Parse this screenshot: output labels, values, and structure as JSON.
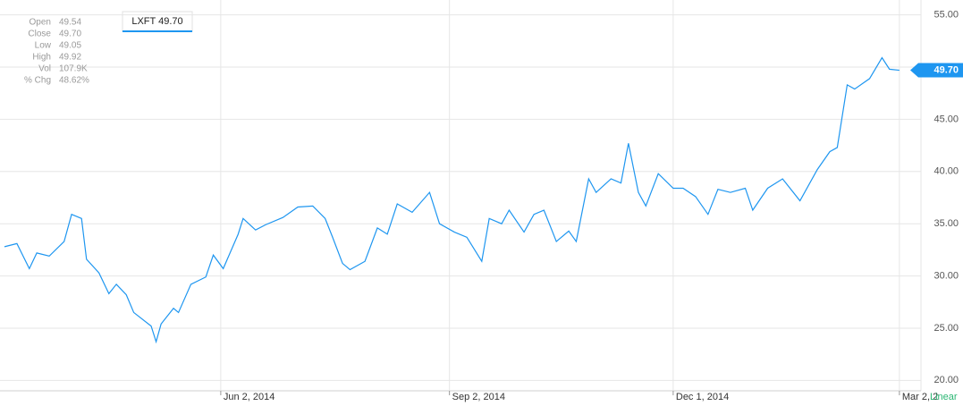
{
  "chart_data": {
    "type": "line",
    "log_scale": false,
    "grid": true,
    "scale_label": "Linear",
    "quote": [
      {
        "label": "Open",
        "value": "49.54"
      },
      {
        "label": "Close",
        "value": "49.70"
      },
      {
        "label": "Low",
        "value": "49.05"
      },
      {
        "label": "High",
        "value": "49.92"
      },
      {
        "label": "Vol",
        "value": "107.9K"
      },
      {
        "label": "% Chg",
        "value": "48.62%"
      }
    ],
    "current": {
      "value": 49.7,
      "label": "49.70"
    },
    "xlim": [
      "2014-03-07",
      "2015-03-06"
    ],
    "xticks": [
      {
        "value": "2014-06-02",
        "label": "Jun 2, 2014"
      },
      {
        "value": "2014-09-02",
        "label": "Sep 2, 2014"
      },
      {
        "value": "2014-12-01",
        "label": "Dec 1, 2014"
      },
      {
        "value": "2015-03-02",
        "label": "Mar 2, 2"
      }
    ],
    "ylim": [
      19,
      56
    ],
    "yticks": [
      {
        "value": 20,
        "label": "20.00"
      },
      {
        "value": 25,
        "label": "25.00"
      },
      {
        "value": 30,
        "label": "30.00"
      },
      {
        "value": 35,
        "label": "35.00"
      },
      {
        "value": 40,
        "label": "40.00"
      },
      {
        "value": 45,
        "label": "45.00"
      },
      {
        "value": 50,
        "label": "50.00"
      },
      {
        "value": 55,
        "label": "55.00"
      }
    ],
    "x": [
      "2014-03-07",
      "2014-03-12",
      "2014-03-17",
      "2014-03-20",
      "2014-03-25",
      "2014-03-31",
      "2014-04-03",
      "2014-04-07",
      "2014-04-09",
      "2014-04-14",
      "2014-04-18",
      "2014-04-21",
      "2014-04-25",
      "2014-04-28",
      "2014-05-05",
      "2014-05-07",
      "2014-05-09",
      "2014-05-14",
      "2014-05-16",
      "2014-05-21",
      "2014-05-27",
      "2014-05-30",
      "2014-06-03",
      "2014-06-09",
      "2014-06-11",
      "2014-06-16",
      "2014-06-20",
      "2014-06-27",
      "2014-07-03",
      "2014-07-09",
      "2014-07-14",
      "2014-07-17",
      "2014-07-21",
      "2014-07-24",
      "2014-07-30",
      "2014-08-04",
      "2014-08-08",
      "2014-08-12",
      "2014-08-18",
      "2014-08-25",
      "2014-08-29",
      "2014-09-04",
      "2014-09-09",
      "2014-09-15",
      "2014-09-18",
      "2014-09-23",
      "2014-09-26",
      "2014-10-02",
      "2014-10-06",
      "2014-10-10",
      "2014-10-15",
      "2014-10-20",
      "2014-10-23",
      "2014-10-28",
      "2014-10-31",
      "2014-11-06",
      "2014-11-10",
      "2014-11-13",
      "2014-11-17",
      "2014-11-20",
      "2014-11-25",
      "2014-12-01",
      "2014-12-05",
      "2014-12-10",
      "2014-12-15",
      "2014-12-19",
      "2014-12-24",
      "2014-12-30",
      "2015-01-02",
      "2015-01-08",
      "2015-01-14",
      "2015-01-21",
      "2015-01-28",
      "2015-02-02",
      "2015-02-05",
      "2015-02-09",
      "2015-02-12",
      "2015-02-18",
      "2015-02-23",
      "2015-02-26",
      "2015-03-02"
    ],
    "series": [
      {
        "name": "LXFT",
        "color": "#1e96f0",
        "values": [
          32.8,
          33.1,
          30.7,
          32.2,
          31.9,
          33.3,
          35.9,
          35.5,
          31.6,
          30.3,
          28.3,
          29.2,
          28.2,
          26.5,
          25.2,
          23.7,
          25.4,
          26.9,
          26.5,
          29.2,
          29.9,
          32.0,
          30.7,
          34.0,
          35.5,
          34.4,
          34.9,
          35.6,
          36.6,
          36.7,
          35.5,
          33.7,
          31.2,
          30.6,
          31.4,
          34.6,
          34.0,
          36.9,
          36.1,
          38.0,
          35.0,
          34.2,
          33.7,
          31.4,
          35.5,
          35.0,
          36.3,
          34.2,
          35.9,
          36.3,
          33.3,
          34.3,
          33.3,
          39.3,
          38.0,
          39.3,
          38.9,
          42.7,
          38.0,
          36.7,
          39.8,
          38.4,
          38.4,
          37.6,
          35.9,
          38.3,
          38.0,
          38.4,
          36.3,
          38.4,
          39.3,
          37.2,
          40.2,
          41.9,
          42.3,
          48.3,
          47.9,
          48.9,
          50.9,
          49.8,
          49.7
        ]
      }
    ]
  }
}
